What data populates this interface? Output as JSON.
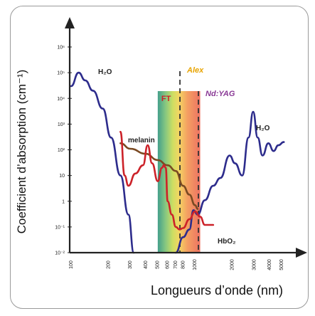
{
  "chart_data": {
    "type": "line",
    "ylabel": "Coefficient d’absorption (cm⁻¹)",
    "xlabel": "Longueurs d’onde (nm)",
    "yscale": "log",
    "xscale": "log",
    "xlim": [
      100,
      6000
    ],
    "ylim": [
      0.01,
      1000000
    ],
    "yticks": [
      {
        "v": 1000000,
        "label": "10⁶"
      },
      {
        "v": 100000,
        "label": "10⁵"
      },
      {
        "v": 10000,
        "label": "10⁴"
      },
      {
        "v": 1000,
        "label": "10³"
      },
      {
        "v": 100,
        "label": "10²"
      },
      {
        "v": 10,
        "label": "10"
      },
      {
        "v": 1,
        "label": "1"
      },
      {
        "v": 0.1,
        "label": "10⁻¹"
      },
      {
        "v": 0.01,
        "label": "10⁻²"
      }
    ],
    "xticks": [
      100,
      200,
      300,
      400,
      500,
      600,
      700,
      800,
      1000,
      2000,
      3000,
      4000,
      5000
    ],
    "series": [
      {
        "name": "H₂O",
        "color": "#2d2c8c",
        "points": [
          [
            100,
            30000
          ],
          [
            115,
            100000
          ],
          [
            130,
            50000
          ],
          [
            150,
            20000
          ],
          [
            180,
            4000
          ],
          [
            210,
            300
          ],
          [
            250,
            10
          ],
          [
            290,
            0.3
          ],
          [
            320,
            0.01
          ]
        ]
      },
      {
        "name": "H₂O",
        "color": "#2d2c8c",
        "points": [
          [
            700,
            0.01
          ],
          [
            800,
            0.04
          ],
          [
            900,
            0.08
          ],
          [
            970,
            0.45
          ],
          [
            1050,
            0.3
          ],
          [
            1200,
            1.1
          ],
          [
            1400,
            4
          ],
          [
            1600,
            8
          ],
          [
            1900,
            60
          ],
          [
            2100,
            30
          ],
          [
            2400,
            10
          ],
          [
            2700,
            300
          ],
          [
            2940,
            3000
          ],
          [
            3200,
            300
          ],
          [
            3500,
            60
          ],
          [
            3900,
            180
          ],
          [
            4300,
            90
          ],
          [
            4700,
            150
          ],
          [
            5200,
            200
          ]
        ]
      },
      {
        "name": "melanin",
        "color": "#7a4a22",
        "points": [
          [
            250,
            180
          ],
          [
            300,
            110
          ],
          [
            400,
            70
          ],
          [
            500,
            40
          ],
          [
            600,
            25
          ],
          [
            700,
            15
          ],
          [
            800,
            4
          ],
          [
            900,
            1.8
          ],
          [
            1000,
            0.7
          ],
          [
            1050,
            0.5
          ]
        ]
      },
      {
        "name": "HbO₂",
        "color": "#cc2229",
        "points": [
          [
            250,
            500
          ],
          [
            270,
            10
          ],
          [
            290,
            4
          ],
          [
            330,
            12
          ],
          [
            380,
            25
          ],
          [
            415,
            150
          ],
          [
            450,
            30
          ],
          [
            500,
            6
          ],
          [
            540,
            20
          ],
          [
            560,
            25
          ],
          [
            580,
            20
          ],
          [
            600,
            1
          ],
          [
            650,
            0.3
          ],
          [
            700,
            0.1
          ],
          [
            750,
            0.08
          ],
          [
            800,
            0.09
          ],
          [
            900,
            0.2
          ],
          [
            1000,
            0.4
          ],
          [
            1100,
            0.25
          ],
          [
            1200,
            0.12
          ],
          [
            1400,
            0.12
          ]
        ]
      }
    ],
    "band": {
      "label": "FT",
      "from": 500,
      "to": 1100
    },
    "lasers": [
      {
        "name": "Alex",
        "x": 755,
        "color": "#e8a400"
      },
      {
        "name": "Nd:YAG",
        "x": 1064,
        "color": "#8a3a96"
      }
    ],
    "annotations": [
      "H₂O",
      "H₂O",
      "melanin",
      "HbO₂"
    ]
  }
}
